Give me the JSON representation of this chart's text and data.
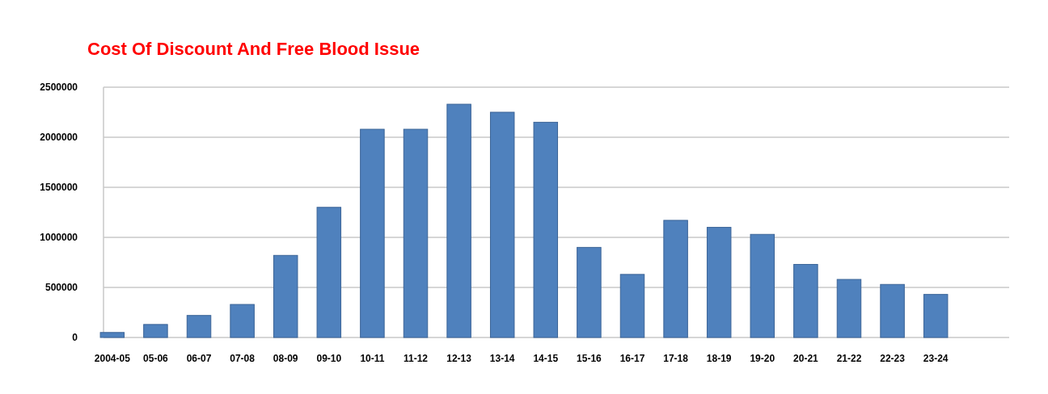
{
  "chart_data": {
    "type": "bar",
    "title": "Cost Of Discount And Free Blood Issue",
    "categories": [
      "2004-05",
      "05-06",
      "06-07",
      "07-08",
      "08-09",
      "09-10",
      "10-11",
      "11-12",
      "12-13",
      "13-14",
      "14-15",
      "15-16",
      "16-17",
      "17-18",
      "18-19",
      "19-20",
      "20-21",
      "21-22",
      "22-23",
      "23-24"
    ],
    "values": [
      50000,
      130000,
      220000,
      330000,
      820000,
      1300000,
      2080000,
      2080000,
      2330000,
      2250000,
      2150000,
      900000,
      630000,
      1170000,
      1100000,
      1030000,
      730000,
      580000,
      530000,
      430000
    ],
    "color": "#4f81bd",
    "ylim": [
      0,
      2500000
    ],
    "yticks": [
      0,
      500000,
      1000000,
      1500000,
      2000000,
      2500000
    ],
    "grid": "y"
  }
}
